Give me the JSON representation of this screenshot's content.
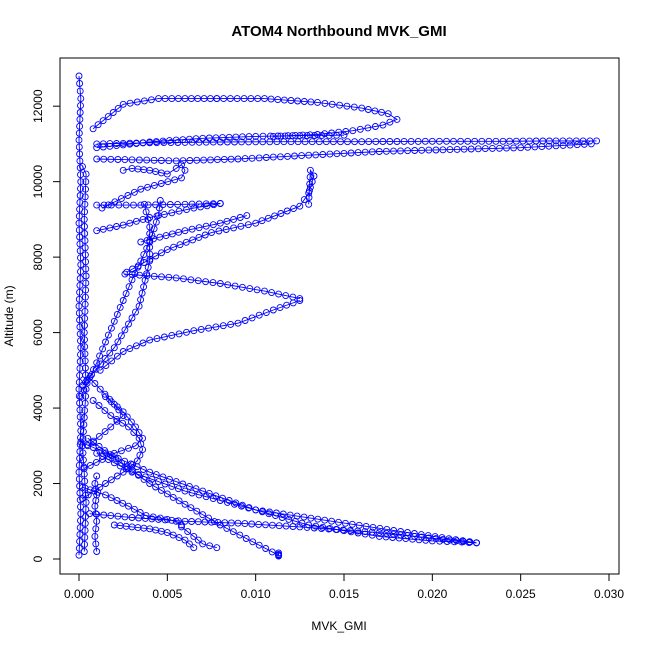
{
  "chart_data": {
    "type": "scatter",
    "title": "ATOM4 Northbound MVK_GMI",
    "xlabel": "MVK_GMI",
    "ylabel": "Altitude (m)",
    "xlim": [
      0.0,
      0.03
    ],
    "ylim": [
      0,
      12800
    ],
    "x_ticks": [
      "0.000",
      "0.005",
      "0.010",
      "0.015",
      "0.020",
      "0.025",
      "0.030"
    ],
    "y_ticks": [
      "0",
      "2000",
      "4000",
      "6000",
      "8000",
      "10000",
      "12000"
    ],
    "marker": "open-circle",
    "lines_connect_points": true,
    "grid": false,
    "legend": "none",
    "color": "#0000ff",
    "series": [
      {
        "segments": [
          {
            "x": [
              0.0,
              0.0001,
              0.0,
              0.0001,
              0.0,
              0.0001,
              0.0,
              0.0001,
              0.0,
              0.0001,
              0.0,
              0.0001,
              0.0
            ],
            "y": [
              100,
              1200,
              2300,
              3400,
              4500,
              5600,
              6700,
              7800,
              8900,
              10000,
              11100,
              12200,
              12800
            ]
          },
          {
            "x": [
              0.0003,
              0.0004,
              0.0002,
              0.0004,
              0.0003,
              0.0004,
              0.0003,
              0.0004,
              0.0002
            ],
            "y": [
              200,
              1500,
              3000,
              4500,
              6000,
              7500,
              9000,
              10200,
              10400
            ]
          },
          {
            "x": [
              0.001,
              0.0009,
              0.001,
              0.0009,
              0.001,
              0.0009,
              0.001
            ],
            "y": [
              200,
              600,
              1000,
              1400,
              1700,
              2000,
              2200
            ]
          },
          {
            "x": [
              0.0008,
              0.0025,
              0.0045,
              0.006,
              0.0078
            ],
            "y": [
              11400,
              12050,
              12200,
              12200,
              12200
            ]
          },
          {
            "x": [
              0.0078,
              0.0105,
              0.0135,
              0.016,
              0.0175,
              0.018,
              0.0172,
              0.0155,
              0.0135,
              0.011
            ],
            "y": [
              12200,
              12200,
              12100,
              11950,
              11800,
              11650,
              11500,
              11350,
              11250,
              11200
            ]
          },
          {
            "x": [
              0.001,
              0.004,
              0.008,
              0.012,
              0.016,
              0.02,
              0.024,
              0.027,
              0.0293
            ],
            "y": [
              11000,
              11030,
              11050,
              11060,
              11060,
              11070,
              11070,
              11080,
              11080
            ]
          },
          {
            "x": [
              0.001,
              0.004,
              0.007,
              0.01,
              0.0125,
              0.015
            ],
            "y": [
              10900,
              11050,
              11150,
              11200,
              11220,
              11230
            ]
          },
          {
            "x": [
              0.001,
              0.003,
              0.0055,
              0.009,
              0.013,
              0.017,
              0.021,
              0.025,
              0.029
            ],
            "y": [
              10600,
              10580,
              10550,
              10600,
              10700,
              10800,
              10850,
              10900,
              11000
            ]
          },
          {
            "x": [
              0.0013,
              0.0035,
              0.0058,
              0.006,
              0.0058,
              0.0055,
              0.005,
              0.004,
              0.003,
              0.0025
            ],
            "y": [
              9300,
              9800,
              10100,
              10300,
              10450,
              10350,
              10200,
              10300,
              10350,
              10300
            ]
          },
          {
            "x": [
              0.001,
              0.0035,
              0.006,
              0.008
            ],
            "y": [
              9380,
              9380,
              9400,
              9420
            ]
          },
          {
            "x": [
              0.001,
              0.0025,
              0.004,
              0.0065,
              0.008
            ],
            "y": [
              8700,
              8850,
              9050,
              9300,
              9420
            ]
          },
          {
            "x": [
              0.0027,
              0.005,
              0.0075,
              0.01,
              0.0125,
              0.013,
              0.0132,
              0.0133,
              0.0131,
              0.013
            ],
            "y": [
              7600,
              8200,
              8650,
              8900,
              9350,
              9700,
              10000,
              10150,
              10300,
              9400
            ]
          },
          {
            "x": [
              0.0035,
              0.006,
              0.008,
              0.0095
            ],
            "y": [
              8400,
              8700,
              8900,
              9100
            ]
          },
          {
            "x": [
              0.0026,
              0.0055,
              0.008,
              0.0105,
              0.0125
            ],
            "y": [
              7550,
              7450,
              7300,
              7100,
              6900
            ]
          },
          {
            "x": [
              0.0125,
              0.011,
              0.009,
              0.0065,
              0.004,
              0.0025,
              0.0012
            ],
            "y": [
              6850,
              6600,
              6250,
              6050,
              5800,
              5500,
              5000
            ]
          },
          {
            "x": [
              0.0001,
              0.001,
              0.002,
              0.003,
              0.004,
              0.0045,
              0.0046
            ],
            "y": [
              4300,
              5200,
              6300,
              7400,
              8400,
              9100,
              9500
            ]
          },
          {
            "x": [
              0.0002,
              0.002,
              0.0034,
              0.004,
              0.004,
              0.0037
            ],
            "y": [
              4600,
              5600,
              6700,
              7900,
              8800,
              9400
            ]
          },
          {
            "x": [
              0.0003,
              0.002,
              0.0032,
              0.0036,
              0.0032,
              0.0025,
              0.0015
            ],
            "y": [
              2400,
              2800,
              3000,
              3200,
              3500,
              3900,
              4300
            ]
          },
          {
            "x": [
              0.0002,
              0.0015,
              0.0025,
              0.0033,
              0.0036,
              0.0034,
              0.0028,
              0.0018,
              0.0008
            ],
            "y": [
              1600,
              2000,
              2300,
              2600,
              2900,
              3200,
              3500,
              3800,
              4200
            ]
          },
          {
            "x": [
              0.0005,
              0.0018,
              0.0025,
              0.002,
              0.0012,
              0.0006
            ],
            "y": [
              3000,
              3500,
              3800,
              4100,
              4500,
              4800
            ]
          },
          {
            "x": [
              0.0002,
              0.0015,
              0.0028,
              0.0038,
              0.005,
              0.0055,
              0.0058
            ],
            "y": [
              1900,
              1700,
              1400,
              1150,
              1050,
              1000,
              900
            ]
          },
          {
            "x": [
              0.0058,
              0.0065,
              0.007,
              0.0078
            ],
            "y": [
              850,
              600,
              400,
              300
            ]
          },
          {
            "x": [
              0.0006,
              0.003,
              0.006,
              0.009,
              0.0125,
              0.017,
              0.021,
              0.0225
            ],
            "y": [
              1200,
              1100,
              1000,
              950,
              850,
              700,
              500,
              430
            ]
          },
          {
            "x": [
              0.0225,
              0.02,
              0.017,
              0.013,
              0.01,
              0.006,
              0.003,
              0.001
            ],
            "y": [
              430,
              480,
              600,
              900,
              1300,
              1800,
              2300,
              2800
            ]
          },
          {
            "x": [
              0.0005,
              0.004,
              0.008,
              0.0113
            ],
            "y": [
              3200,
              2000,
              900,
              100
            ]
          },
          {
            "x": [
              0.0113,
              0.0113,
              0.0113
            ],
            "y": [
              80,
              120,
              160
            ]
          },
          {
            "x": [
              0.0001,
              0.004,
              0.01,
              0.0225
            ],
            "y": [
              3100,
              2300,
              1300,
              430
            ]
          },
          {
            "x": [
              0.002,
              0.003,
              0.004,
              0.005,
              0.006,
              0.0065
            ],
            "y": [
              900,
              850,
              800,
              700,
              500,
              300
            ]
          }
        ]
      }
    ]
  }
}
